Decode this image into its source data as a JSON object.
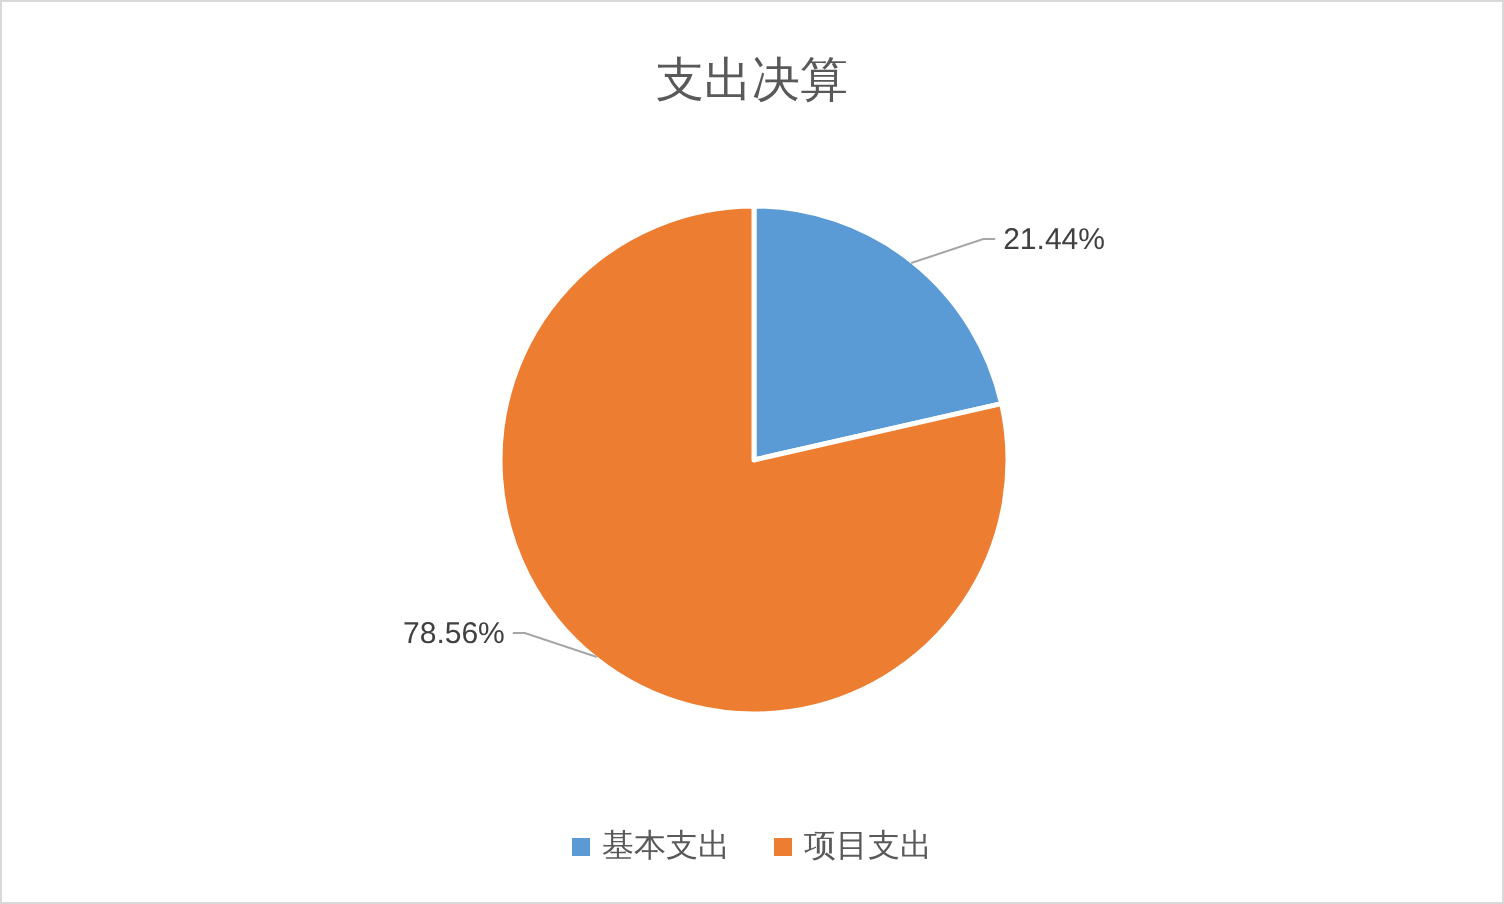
{
  "chart_data": {
    "type": "pie",
    "title": "支出决算",
    "categories": [
      "基本支出",
      "项目支出"
    ],
    "values": [
      21.44,
      78.56
    ],
    "colors": [
      "#5b9bd5",
      "#ed7d31"
    ],
    "value_labels": [
      "21.44%",
      "78.56%"
    ],
    "legend": "bottom"
  }
}
